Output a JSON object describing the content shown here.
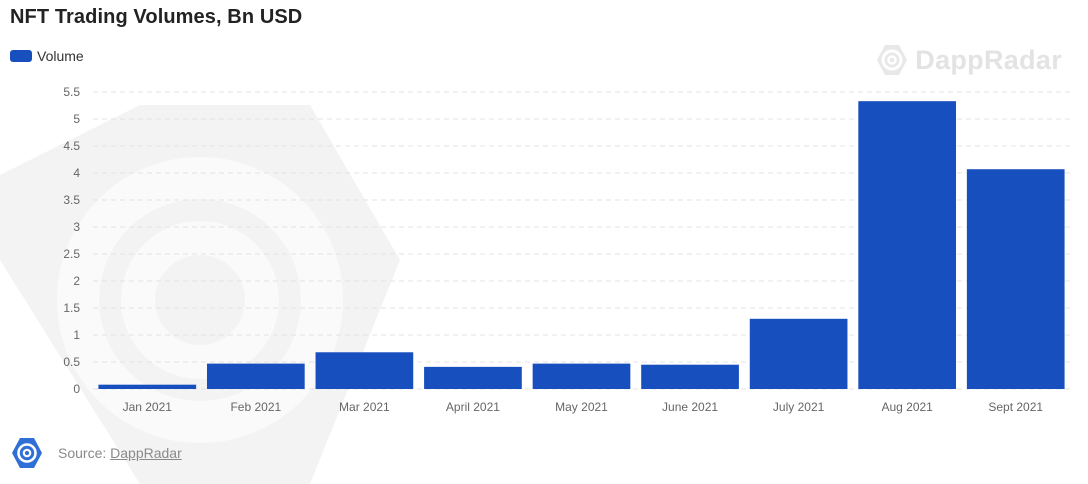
{
  "title": "NFT Trading Volumes, Bn USD",
  "legend": {
    "label": "Volume"
  },
  "brand": {
    "name": "DappRadar"
  },
  "source": {
    "prefix": "Source: ",
    "link": "DappRadar"
  },
  "colors": {
    "bar": "#174fbf",
    "watermark": "#f1f1f1",
    "grid": "#e3e3e3",
    "tick": "#666666"
  },
  "chart_data": {
    "type": "bar",
    "title": "NFT Trading Volumes, Bn USD",
    "categories": [
      "Jan 2021",
      "Feb 2021",
      "Mar 2021",
      "April 2021",
      "May 2021",
      "June 2021",
      "July 2021",
      "Aug 2021",
      "Sept 2021"
    ],
    "series": [
      {
        "name": "Volume",
        "values": [
          0.08,
          0.47,
          0.68,
          0.41,
          0.47,
          0.45,
          1.3,
          5.33,
          4.07
        ]
      }
    ],
    "y_ticks": [
      "0",
      "0.5",
      "1",
      "1.5",
      "2",
      "2.5",
      "3",
      "3.5",
      "4",
      "4.5",
      "5",
      "5.5"
    ],
    "ylim": [
      0,
      5.5
    ],
    "grid": true,
    "legend_position": "top-left"
  }
}
